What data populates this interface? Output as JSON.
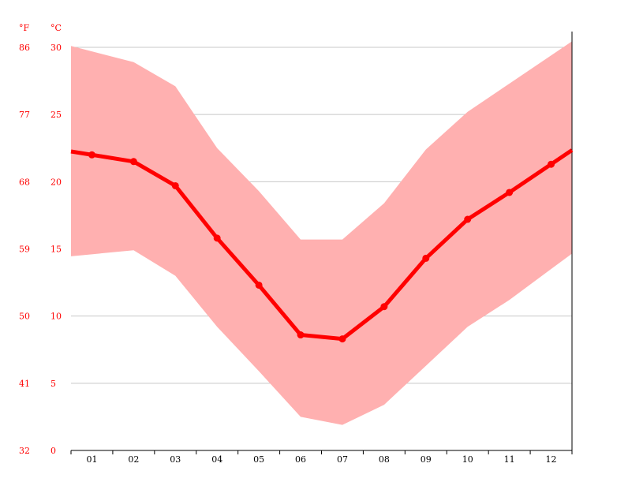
{
  "chart_data": {
    "type": "area",
    "y_unit_f": "°F",
    "y_unit_c": "°C",
    "categories": [
      "01",
      "02",
      "03",
      "04",
      "05",
      "06",
      "07",
      "08",
      "09",
      "10",
      "11",
      "12"
    ],
    "yticks_c": [
      0,
      5,
      10,
      15,
      20,
      25,
      30
    ],
    "yticks_f": [
      "32",
      "41",
      "50",
      "59",
      "68",
      "77",
      "86"
    ],
    "ylim": [
      0,
      30
    ],
    "grid": true,
    "series": [
      {
        "values": [
          22.0,
          21.5,
          19.7,
          15.8,
          12.3,
          8.6,
          8.3,
          10.7,
          14.3,
          17.2,
          19.2,
          21.3
        ]
      },
      {
        "values": [
          29.7,
          28.9,
          27.1,
          22.5,
          19.3,
          15.7,
          15.7,
          18.4,
          22.4,
          25.2,
          27.3,
          29.4
        ]
      },
      {
        "values": [
          14.6,
          14.9,
          13.0,
          9.2,
          5.9,
          2.5,
          1.9,
          3.4,
          6.3,
          9.2,
          11.2,
          13.5
        ]
      }
    ],
    "colors": {
      "avg": "#ff0000",
      "band": "#ffb0b0",
      "grid": "#c8c8c8",
      "axis": "#000000",
      "label": "#ff0000"
    }
  }
}
